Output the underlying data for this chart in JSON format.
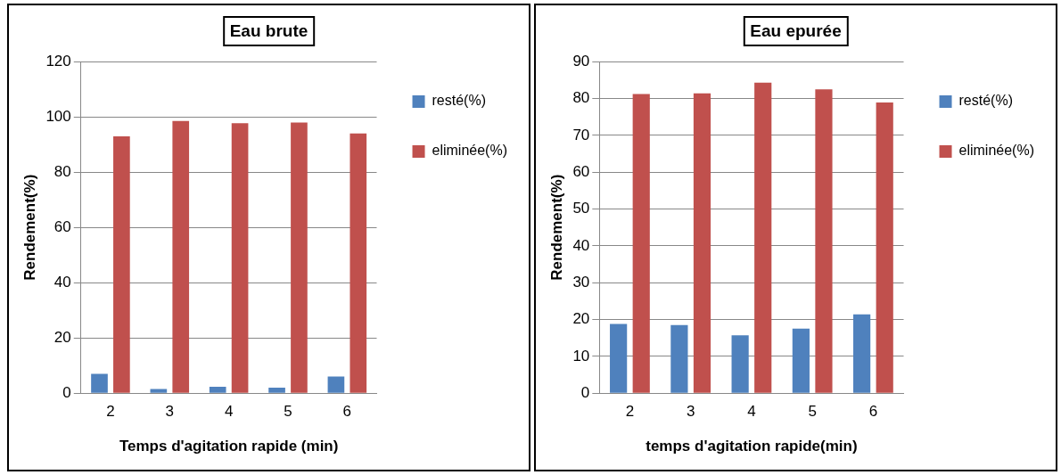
{
  "chart_data": [
    {
      "type": "bar",
      "title": "Eau brute",
      "xlabel": "Temps d'agitation rapide (min)",
      "ylabel": "Rendement(%)",
      "categories": [
        "2",
        "3",
        "4",
        "5",
        "6"
      ],
      "series": [
        {
          "name": "resté(%)",
          "color": "#4f81bd",
          "values": [
            7,
            1.5,
            2.3,
            2,
            6
          ]
        },
        {
          "name": "eliminée(%)",
          "color": "#c0504d",
          "values": [
            93,
            98.5,
            97.7,
            98,
            94
          ]
        }
      ],
      "ylim": [
        0,
        120
      ],
      "yticks": [
        0,
        20,
        40,
        60,
        80,
        100,
        120
      ],
      "grid": "y",
      "legend": "top right"
    },
    {
      "type": "bar",
      "title": "Eau epurée",
      "xlabel": "temps d'agitation rapide(min)",
      "ylabel": "Rendement(%)",
      "categories": [
        "2",
        "3",
        "4",
        "5",
        "6"
      ],
      "series": [
        {
          "name": "resté(%)",
          "color": "#4f81bd",
          "values": [
            18.8,
            18.5,
            15.7,
            17.5,
            21.4
          ]
        },
        {
          "name": "eliminée(%)",
          "color": "#c0504d",
          "values": [
            81.2,
            81.4,
            84.3,
            82.5,
            78.9
          ]
        }
      ],
      "ylim": [
        0,
        90
      ],
      "yticks": [
        0,
        10,
        20,
        30,
        40,
        50,
        60,
        70,
        80,
        90
      ],
      "grid": "y",
      "legend": "top right"
    }
  ]
}
